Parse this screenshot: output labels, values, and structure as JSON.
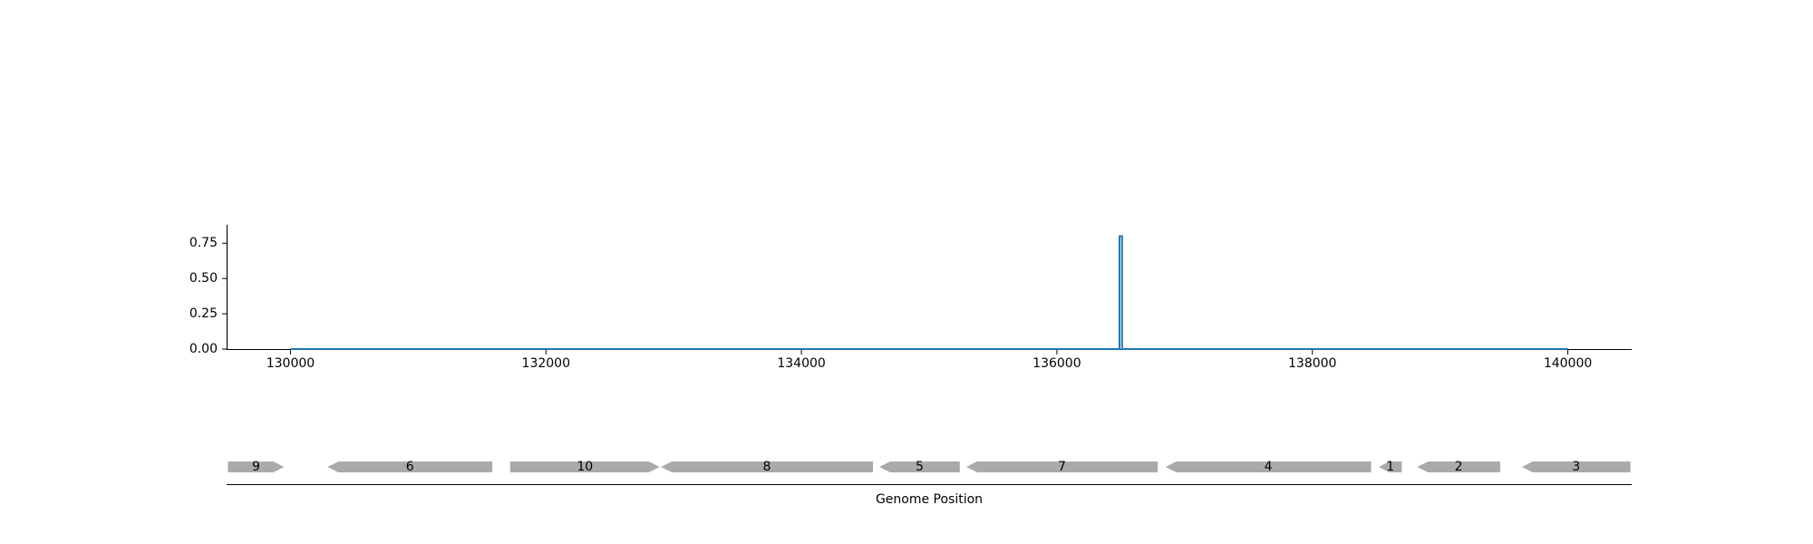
{
  "chart_data": [
    {
      "type": "line",
      "title": "",
      "xlabel": "",
      "ylabel": "",
      "xlim": [
        129500,
        140500
      ],
      "ylim": [
        0,
        0.88
      ],
      "x_ticks": [
        "130000",
        "132000",
        "134000",
        "136000",
        "138000",
        "140000"
      ],
      "y_ticks": [
        "0.00",
        "0.25",
        "0.50",
        "0.75"
      ],
      "grid": false,
      "series_color": "#1f77b4",
      "series": [
        {
          "x": [
            130000,
            136490,
            136490,
            136510,
            136510,
            140000
          ],
          "y": [
            0,
            0,
            0.8,
            0.8,
            0,
            0
          ]
        }
      ]
    },
    {
      "type": "gene_track",
      "xlabel": "Genome Position",
      "xlim": [
        129500,
        140500
      ],
      "gene_color": "#aaaaaa",
      "genes": [
        {
          "label": "9",
          "start": 129510,
          "end": 129950,
          "strand": "+"
        },
        {
          "label": "6",
          "start": 130290,
          "end": 131580,
          "strand": "-"
        },
        {
          "label": "10",
          "start": 131720,
          "end": 132890,
          "strand": "+"
        },
        {
          "label": "8",
          "start": 132900,
          "end": 134560,
          "strand": "-"
        },
        {
          "label": "5",
          "start": 134610,
          "end": 135240,
          "strand": "-"
        },
        {
          "label": "7",
          "start": 135290,
          "end": 136790,
          "strand": "-"
        },
        {
          "label": "4",
          "start": 136850,
          "end": 138460,
          "strand": "-"
        },
        {
          "label": "1",
          "start": 138520,
          "end": 138700,
          "strand": "-"
        },
        {
          "label": "2",
          "start": 138820,
          "end": 139470,
          "strand": "-"
        },
        {
          "label": "3",
          "start": 139640,
          "end": 140490,
          "strand": "-"
        }
      ]
    }
  ]
}
